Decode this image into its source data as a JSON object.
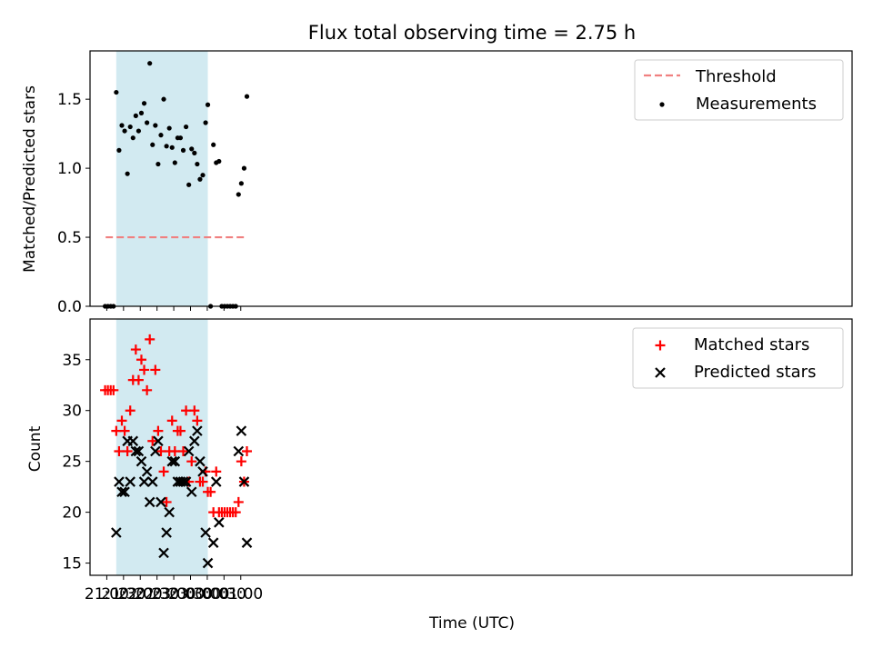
{
  "title": "Flux total observing time = 2.75 h",
  "chart_data": [
    {
      "type": "scatter",
      "ylabel": "Matched/Predicted stars",
      "ylim": [
        0,
        1.85
      ],
      "yticks": [
        0.0,
        0.5,
        1.0,
        1.5
      ],
      "ytick_labels": [
        "0.0",
        "0.5",
        "1.0",
        "1.5"
      ],
      "x_range_minutes": [
        -30,
        1335
      ],
      "highlight_span": {
        "start": "21:17",
        "end": "00:01",
        "color": "#add8e6"
      },
      "threshold": {
        "name": "Threshold",
        "value": 0.5,
        "x_start": "20:58",
        "x_end": "01:12",
        "color": "#f08080"
      },
      "legend": {
        "placement": "top-right",
        "entries": [
          "Threshold",
          "Measurements"
        ]
      },
      "series": [
        {
          "name": "Measurements",
          "color": "#000000",
          "x": [
            "20:57",
            "21:02",
            "21:07",
            "21:12",
            "21:17",
            "21:22",
            "21:27",
            "21:32",
            "21:37",
            "21:42",
            "21:47",
            "21:52",
            "21:57",
            "22:02",
            "22:07",
            "22:12",
            "22:17",
            "22:22",
            "22:27",
            "22:32",
            "22:37",
            "22:42",
            "22:47",
            "22:52",
            "22:57",
            "23:02",
            "23:07",
            "23:12",
            "23:17",
            "23:22",
            "23:27",
            "23:32",
            "23:37",
            "23:42",
            "23:47",
            "23:52",
            "23:57",
            "00:01",
            "00:06",
            "00:11",
            "00:16",
            "00:21",
            "00:26",
            "00:31",
            "00:36",
            "00:41",
            "00:46",
            "00:51",
            "00:56",
            "01:01",
            "01:06",
            "01:11"
          ],
          "y": [
            0.0,
            0.0,
            0.0,
            0.0,
            1.55,
            1.13,
            1.31,
            1.27,
            0.96,
            1.3,
            1.22,
            1.38,
            1.27,
            1.4,
            1.47,
            1.33,
            1.76,
            1.17,
            1.31,
            1.03,
            1.24,
            1.5,
            1.16,
            1.29,
            1.15,
            1.04,
            1.22,
            1.22,
            1.13,
            1.3,
            0.88,
            1.14,
            1.11,
            1.03,
            0.92,
            0.95,
            1.33,
            1.46,
            0.0,
            1.17,
            1.04,
            1.05,
            0.0,
            0.0,
            0.0,
            0.0,
            0.0,
            0.0,
            0.81,
            0.89,
            1.0,
            1.52
          ]
        }
      ]
    },
    {
      "type": "scatter",
      "xlabel": "Time (UTC)",
      "ylabel": "Count",
      "ylim": [
        13.8,
        39
      ],
      "yticks": [
        15,
        20,
        25,
        30,
        35
      ],
      "ytick_labels": [
        "15",
        "20",
        "25",
        "30",
        "35"
      ],
      "xticks": [
        "21:00",
        "21:30",
        "22:00",
        "22:30",
        "23:00",
        "23:30",
        "00:00",
        "00:30",
        "01:00"
      ],
      "x_range_minutes": [
        -30,
        1335
      ],
      "highlight_span": {
        "start": "21:17",
        "end": "00:01",
        "color": "#add8e6"
      },
      "legend": {
        "placement": "top-right",
        "entries": [
          "Matched stars",
          "Predicted stars"
        ]
      },
      "x": [
        "20:57",
        "21:02",
        "21:07",
        "21:12",
        "21:17",
        "21:22",
        "21:27",
        "21:32",
        "21:37",
        "21:42",
        "21:47",
        "21:52",
        "21:57",
        "22:02",
        "22:07",
        "22:12",
        "22:17",
        "22:22",
        "22:27",
        "22:32",
        "22:37",
        "22:42",
        "22:47",
        "22:52",
        "22:57",
        "23:02",
        "23:07",
        "23:12",
        "23:17",
        "23:22",
        "23:27",
        "23:32",
        "23:37",
        "23:42",
        "23:47",
        "23:52",
        "23:57",
        "00:01",
        "00:06",
        "00:11",
        "00:16",
        "00:21",
        "00:26",
        "00:31",
        "00:36",
        "00:41",
        "00:46",
        "00:51",
        "00:56",
        "01:01",
        "01:06",
        "01:11"
      ],
      "series": [
        {
          "name": "Matched stars",
          "marker": "plus",
          "color": "#ff0000",
          "values": [
            32,
            32,
            32,
            32,
            28,
            26,
            29,
            28,
            26,
            30,
            33,
            36,
            33,
            35,
            34,
            32,
            37,
            27,
            34,
            28,
            26,
            24,
            21,
            26,
            29,
            26,
            28,
            28,
            26,
            30,
            23,
            25,
            30,
            29,
            23,
            23,
            24,
            22,
            22,
            20,
            24,
            20,
            20,
            20,
            20,
            20,
            20,
            20,
            21,
            25,
            23,
            26
          ]
        },
        {
          "name": "Predicted stars",
          "marker": "x",
          "color": "#000000",
          "values": [
            null,
            null,
            null,
            null,
            18,
            23,
            22,
            22,
            27,
            23,
            27,
            26,
            26,
            25,
            23,
            24,
            21,
            23,
            26,
            27,
            21,
            16,
            18,
            20,
            25,
            25,
            23,
            23,
            23,
            23,
            26,
            22,
            27,
            28,
            25,
            24,
            18,
            15,
            null,
            17,
            23,
            19,
            null,
            null,
            null,
            null,
            null,
            null,
            26,
            28,
            23,
            17
          ]
        }
      ]
    }
  ]
}
